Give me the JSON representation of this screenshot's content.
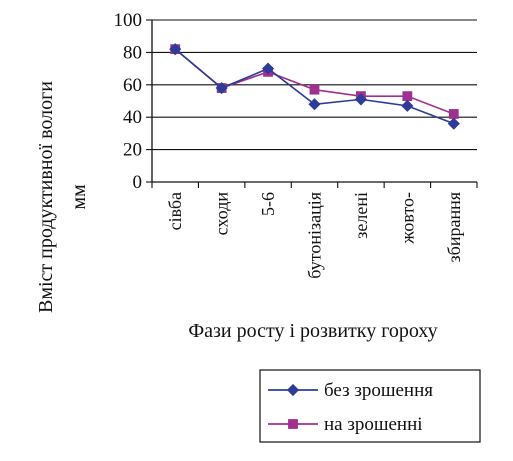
{
  "chart_data": {
    "type": "line",
    "categories": [
      "сівба",
      "сходи",
      "5-6",
      "бутонізація",
      "зелені",
      "жовто-",
      "збирання"
    ],
    "series": [
      {
        "name": "без зрошення",
        "values": [
          82,
          58,
          70,
          48,
          51,
          47,
          36
        ],
        "color": "#2E3C97",
        "marker": "diamond"
      },
      {
        "name": "на зрошенні",
        "values": [
          82,
          58,
          68,
          57,
          53,
          53,
          42
        ],
        "color": "#A0308F",
        "marker": "square"
      }
    ],
    "xlabel": "Фази росту і розвитку гороху",
    "ylabel_line1": "Вміст продуктивної вологи",
    "ylabel_line2": "мм",
    "ylim": [
      0,
      100
    ],
    "yticks": [
      0,
      20,
      40,
      60,
      80,
      100
    ],
    "grid": "horizontal",
    "legend_position": "bottom-right"
  }
}
